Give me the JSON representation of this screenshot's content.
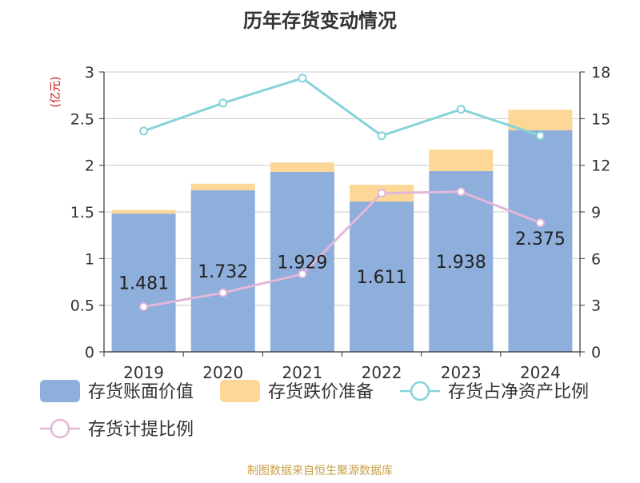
{
  "chart_data": {
    "type": "bar",
    "title": "历年存货变动情况",
    "categories": [
      "2019",
      "2020",
      "2021",
      "2022",
      "2023",
      "2024"
    ],
    "left_axis": {
      "unit_label": "(亿元)",
      "ticks": [
        "0",
        "0.5",
        "1",
        "1.5",
        "2",
        "2.5",
        "3"
      ],
      "ylim": [
        0,
        3
      ]
    },
    "right_axis": {
      "ticks": [
        "0",
        "3",
        "6",
        "9",
        "12",
        "15",
        "18"
      ],
      "ylim": [
        0,
        18
      ]
    },
    "series": [
      {
        "name": "存货账面价值",
        "type": "bar",
        "stack": "a",
        "axis": "left",
        "color": "#8eaedb",
        "values": [
          1.481,
          1.732,
          1.929,
          1.611,
          1.938,
          2.375
        ],
        "labels": [
          "1.481",
          "1.732",
          "1.929",
          "1.611",
          "1.938",
          "2.375"
        ]
      },
      {
        "name": "存货跌价准备",
        "type": "bar",
        "stack": "a",
        "axis": "left",
        "color": "#fdd795",
        "values": [
          0.04,
          0.07,
          0.1,
          0.18,
          0.23,
          0.22
        ]
      },
      {
        "name": "存货占净资产比例",
        "type": "line",
        "axis": "right",
        "color": "#86d3da",
        "values": [
          14.2,
          16.0,
          17.6,
          13.9,
          15.6,
          13.9
        ]
      },
      {
        "name": "存货计提比例",
        "type": "line",
        "axis": "right",
        "color": "#e3b7d9",
        "values": [
          2.9,
          3.8,
          5.0,
          10.2,
          10.3,
          8.3
        ]
      }
    ],
    "grid": true,
    "legend_position": "bottom"
  },
  "footer": "制图数据来自恒生聚源数据库"
}
